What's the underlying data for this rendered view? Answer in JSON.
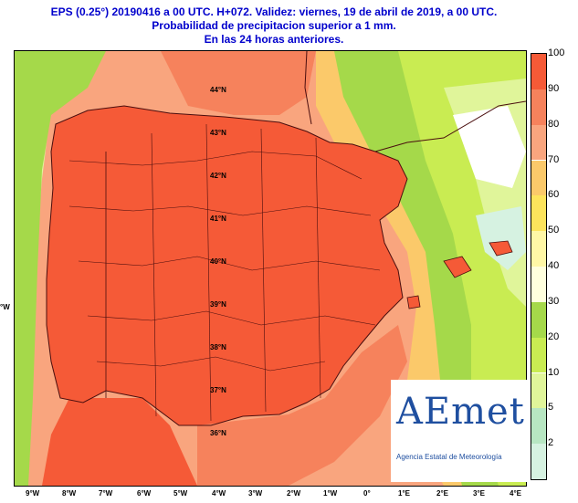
{
  "header": {
    "line1": "EPS (0.25°) 20190416 a 00 UTC.  H+072. Validez: viernes, 19 de abril de 2019,  a  00 UTC.",
    "line2": "Probabilidad de precipitacion superior a 1 mm.",
    "line3": "En las 24 horas anteriores."
  },
  "map": {
    "lat_labels": [
      "44°N",
      "43°N",
      "42°N",
      "41°N",
      "40°N",
      "39°N",
      "38°N",
      "37°N",
      "36°N"
    ],
    "lon_labels": [
      "9°W",
      "8°W",
      "7°W",
      "6°W",
      "5°W",
      "4°W",
      "3°W",
      "2°W",
      "1°W",
      "0°",
      "1°E",
      "2°E",
      "3°E",
      "4°E"
    ],
    "left_edge_label": "°W"
  },
  "legend": {
    "labels": [
      "100",
      "90",
      "80",
      "70",
      "60",
      "50",
      "40",
      "30",
      "20",
      "10",
      "5",
      "2"
    ],
    "colors": [
      "#f55a37",
      "#f6825c",
      "#f9a57e",
      "#fbc96a",
      "#fde45c",
      "#fff7a6",
      "#ffffde",
      "#a5d94a",
      "#c9ec52",
      "#e0f59a",
      "#b7e6c2",
      "#d6f2e1"
    ]
  },
  "logo": {
    "word": "AEmet",
    "subtitle": "Agencia Estatal de Meteorología"
  },
  "colors": {
    "header_text": "#0000cc",
    "land_high": "#f55a37",
    "sea_mid": "#f9a57e",
    "east_low": "#a5d94a",
    "coast_line": "#4a0e0e"
  }
}
